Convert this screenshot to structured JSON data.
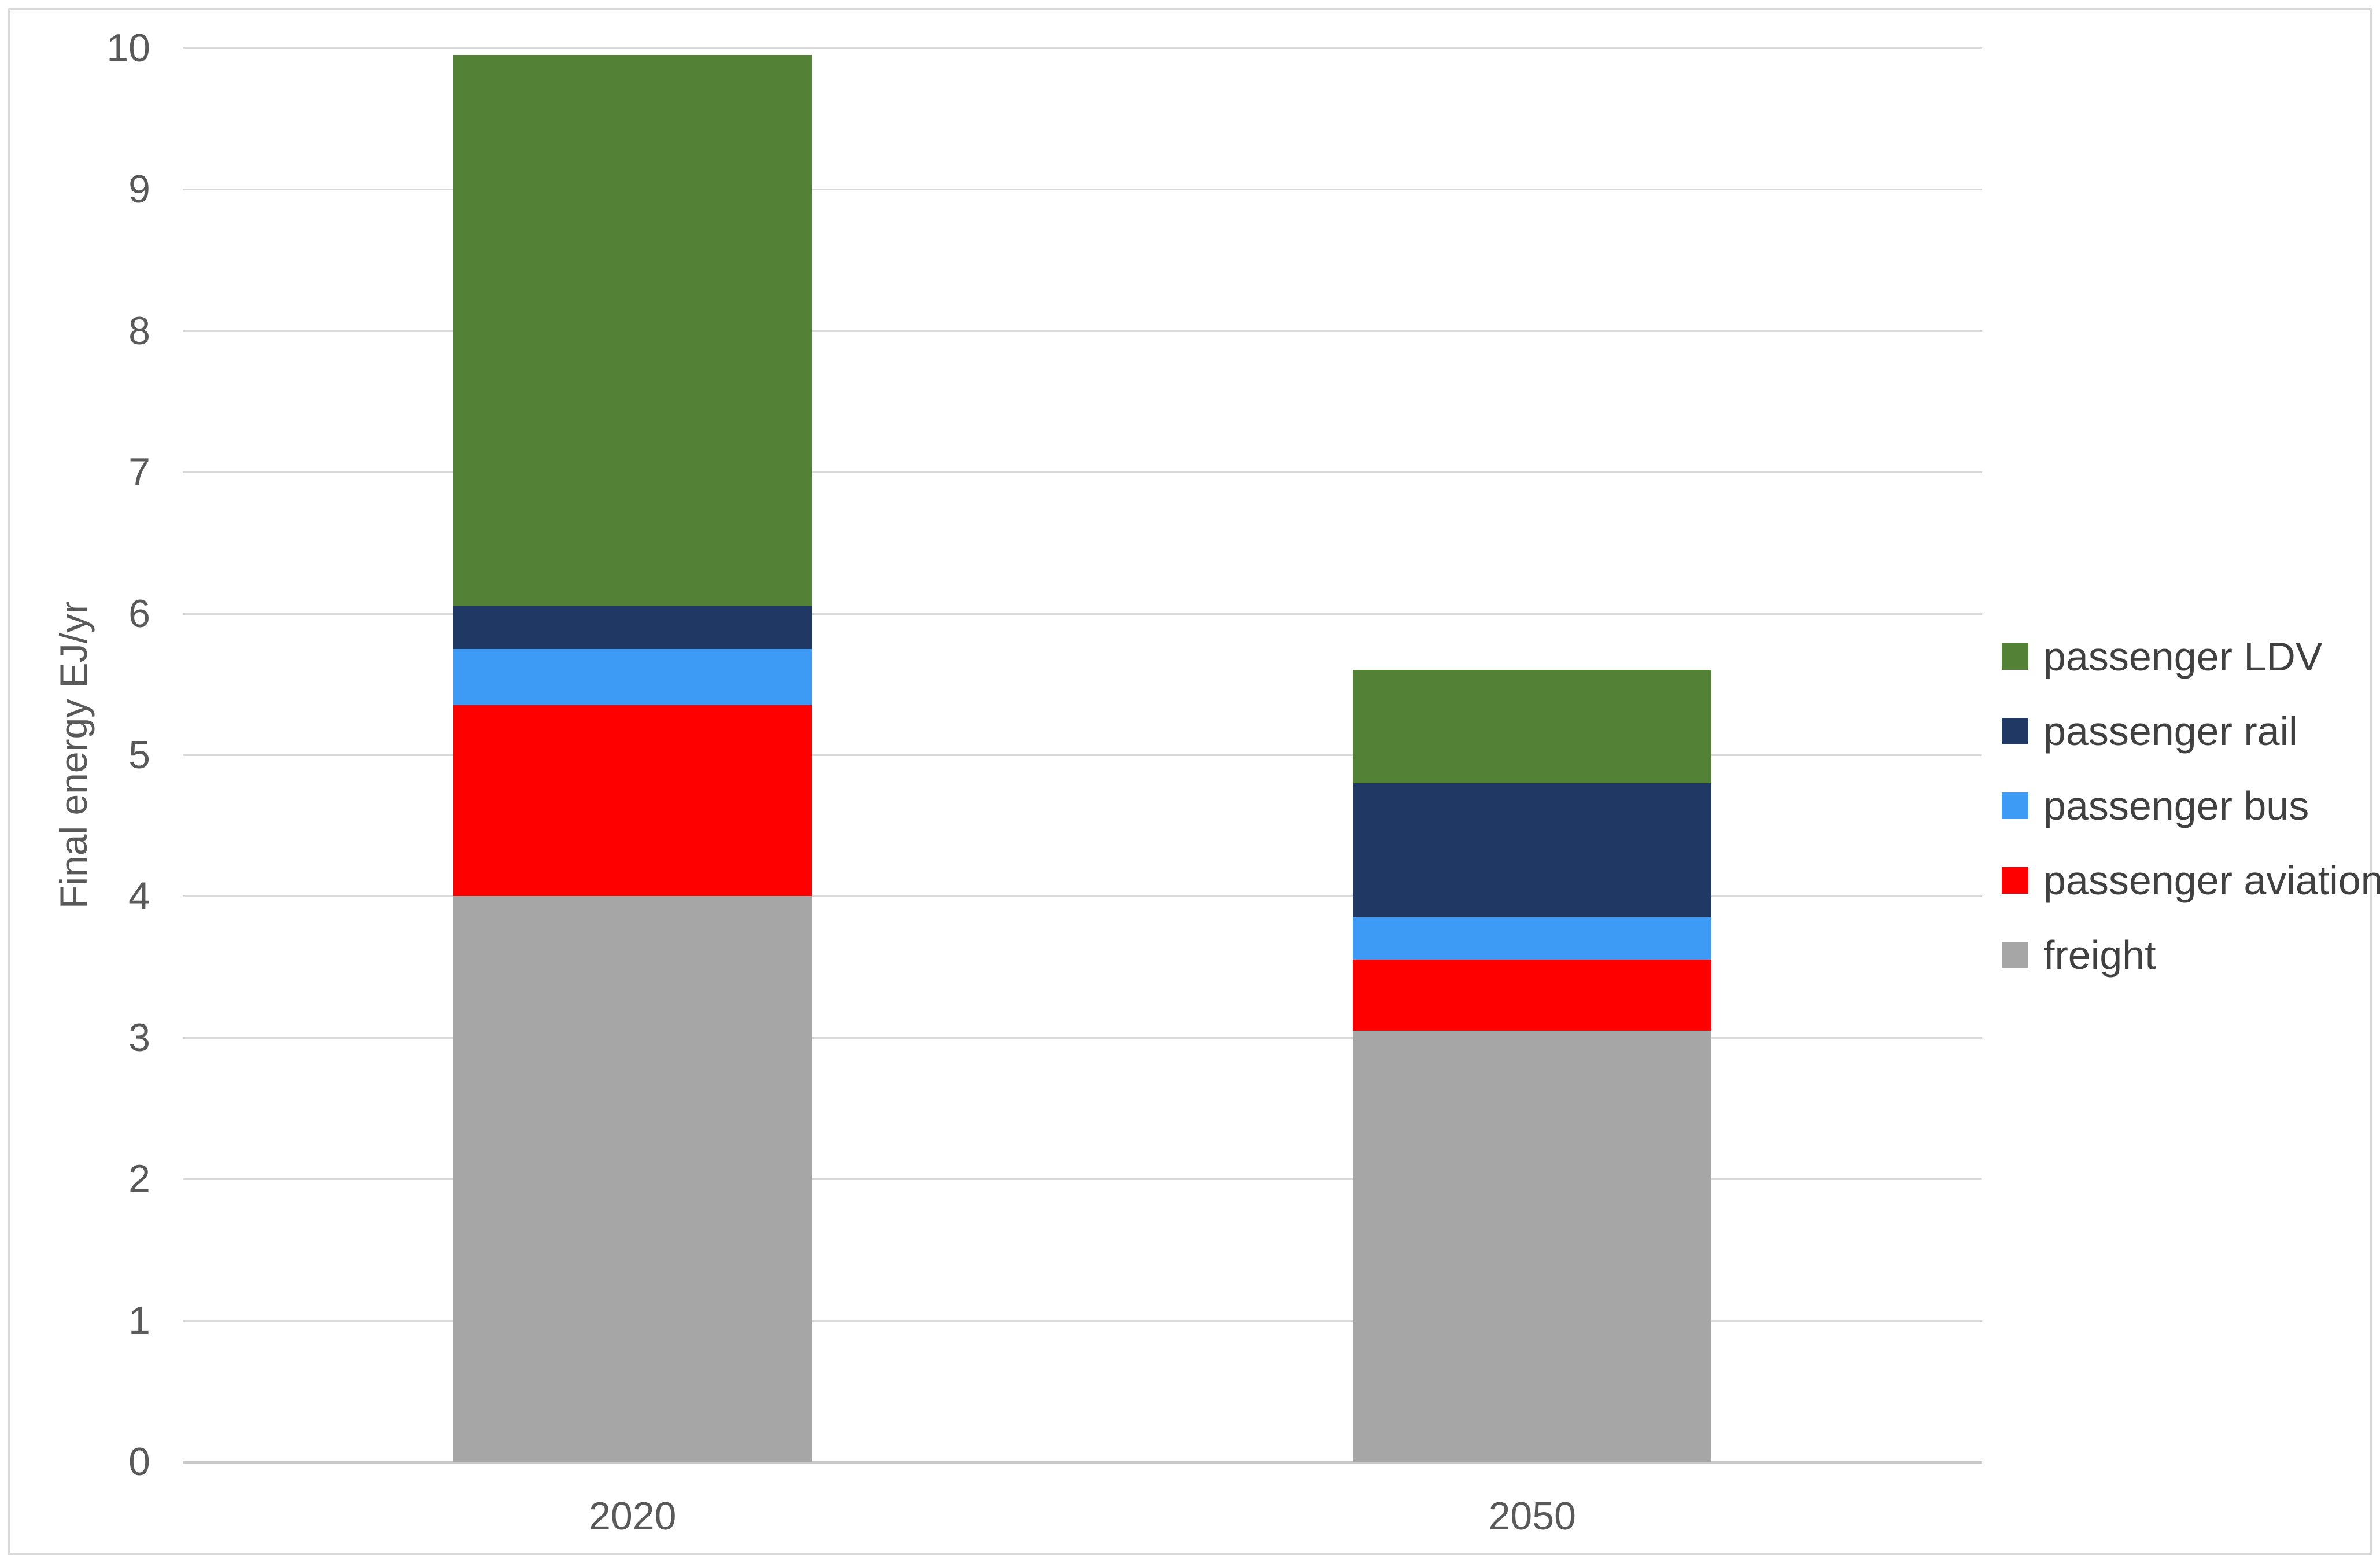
{
  "chart_data": {
    "type": "bar",
    "stacked": true,
    "title": "",
    "xlabel": "",
    "ylabel": "Final energy EJ/yr",
    "categories": [
      "2020",
      "2050"
    ],
    "series": [
      {
        "name": "passenger LDV",
        "color": "#538135",
        "values": [
          3.9,
          0.8
        ]
      },
      {
        "name": "passenger rail",
        "color": "#1f3864",
        "values": [
          0.3,
          0.95
        ]
      },
      {
        "name": "passenger bus",
        "color": "#3e9bf5",
        "values": [
          0.4,
          0.3
        ]
      },
      {
        "name": "passenger aviation",
        "color": "#ff0000",
        "values": [
          1.35,
          0.5
        ]
      },
      {
        "name": "freight",
        "color": "#a6a6a6",
        "values": [
          4.0,
          3.05
        ]
      }
    ],
    "stack_order_bottom_to_top": [
      "freight",
      "passenger aviation",
      "passenger bus",
      "passenger rail",
      "passenger LDV"
    ],
    "totals": [
      9.95,
      5.6
    ],
    "ylim": [
      0,
      10
    ],
    "yticks": [
      0,
      1,
      2,
      3,
      4,
      5,
      6,
      7,
      8,
      9,
      10
    ],
    "grid": true,
    "legend_position": "right"
  }
}
